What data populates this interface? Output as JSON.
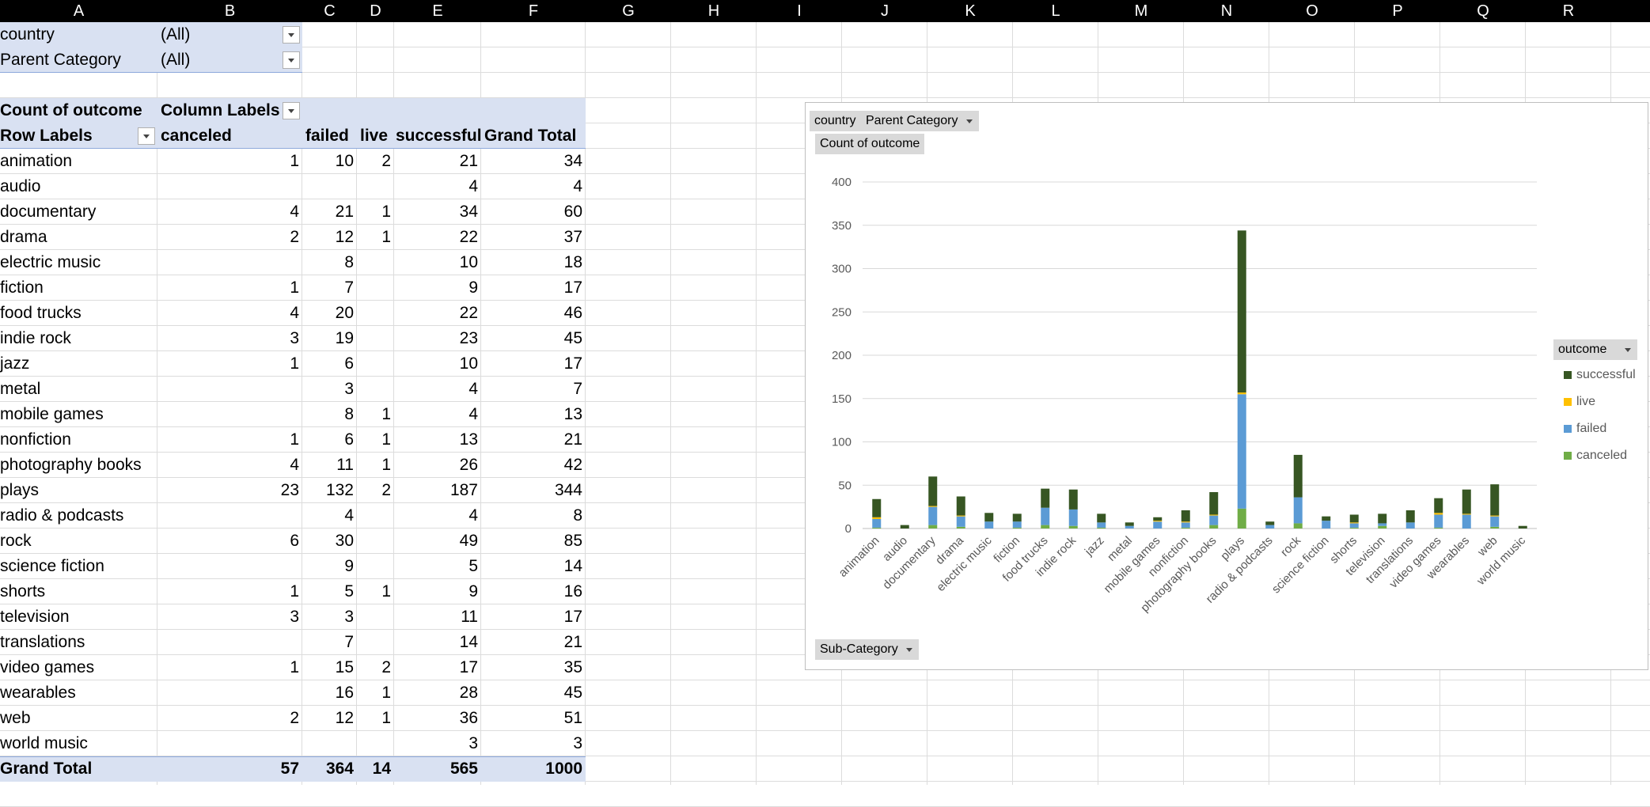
{
  "columns": [
    "A",
    "B",
    "C",
    "D",
    "E",
    "F",
    "G",
    "H",
    "I",
    "J",
    "K",
    "L",
    "M",
    "N",
    "O",
    "P",
    "Q",
    "R"
  ],
  "filters": [
    {
      "label": "country",
      "value": "(All)"
    },
    {
      "label": "Parent Category",
      "value": "(All)"
    }
  ],
  "pivot": {
    "value_label": "Count of outcome",
    "column_labels": "Column Labels",
    "row_labels": "Row Labels",
    "headers": [
      "canceled",
      "failed",
      "live",
      "successful",
      "Grand Total"
    ],
    "rows": [
      {
        "name": "animation",
        "c": "1",
        "f": "10",
        "l": "2",
        "s": "21",
        "t": "34"
      },
      {
        "name": "audio",
        "c": "",
        "f": "",
        "l": "",
        "s": "4",
        "t": "4"
      },
      {
        "name": "documentary",
        "c": "4",
        "f": "21",
        "l": "1",
        "s": "34",
        "t": "60"
      },
      {
        "name": "drama",
        "c": "2",
        "f": "12",
        "l": "1",
        "s": "22",
        "t": "37"
      },
      {
        "name": "electric music",
        "c": "",
        "f": "8",
        "l": "",
        "s": "10",
        "t": "18"
      },
      {
        "name": "fiction",
        "c": "1",
        "f": "7",
        "l": "",
        "s": "9",
        "t": "17"
      },
      {
        "name": "food trucks",
        "c": "4",
        "f": "20",
        "l": "",
        "s": "22",
        "t": "46"
      },
      {
        "name": "indie rock",
        "c": "3",
        "f": "19",
        "l": "",
        "s": "23",
        "t": "45"
      },
      {
        "name": "jazz",
        "c": "1",
        "f": "6",
        "l": "",
        "s": "10",
        "t": "17"
      },
      {
        "name": "metal",
        "c": "",
        "f": "3",
        "l": "",
        "s": "4",
        "t": "7"
      },
      {
        "name": "mobile games",
        "c": "",
        "f": "8",
        "l": "1",
        "s": "4",
        "t": "13"
      },
      {
        "name": "nonfiction",
        "c": "1",
        "f": "6",
        "l": "1",
        "s": "13",
        "t": "21"
      },
      {
        "name": "photography books",
        "c": "4",
        "f": "11",
        "l": "1",
        "s": "26",
        "t": "42"
      },
      {
        "name": "plays",
        "c": "23",
        "f": "132",
        "l": "2",
        "s": "187",
        "t": "344"
      },
      {
        "name": "radio & podcasts",
        "c": "",
        "f": "4",
        "l": "",
        "s": "4",
        "t": "8"
      },
      {
        "name": "rock",
        "c": "6",
        "f": "30",
        "l": "",
        "s": "49",
        "t": "85"
      },
      {
        "name": "science fiction",
        "c": "",
        "f": "9",
        "l": "",
        "s": "5",
        "t": "14"
      },
      {
        "name": "shorts",
        "c": "1",
        "f": "5",
        "l": "1",
        "s": "9",
        "t": "16"
      },
      {
        "name": "television",
        "c": "3",
        "f": "3",
        "l": "",
        "s": "11",
        "t": "17"
      },
      {
        "name": "translations",
        "c": "",
        "f": "7",
        "l": "",
        "s": "14",
        "t": "21"
      },
      {
        "name": "video games",
        "c": "1",
        "f": "15",
        "l": "2",
        "s": "17",
        "t": "35"
      },
      {
        "name": "wearables",
        "c": "",
        "f": "16",
        "l": "1",
        "s": "28",
        "t": "45"
      },
      {
        "name": "web",
        "c": "2",
        "f": "12",
        "l": "1",
        "s": "36",
        "t": "51"
      },
      {
        "name": "world music",
        "c": "",
        "f": "",
        "l": "",
        "s": "3",
        "t": "3"
      }
    ],
    "grand_total": {
      "name": "Grand Total",
      "c": "57",
      "f": "364",
      "l": "14",
      "s": "565",
      "t": "1000"
    }
  },
  "chart_buttons": {
    "country": "country",
    "parent": "Parent Category",
    "value": "Count of outcome",
    "axis": "Sub-Category",
    "legend": "outcome"
  },
  "chart_data": {
    "type": "bar",
    "stacked": true,
    "categories": [
      "animation",
      "audio",
      "documentary",
      "drama",
      "electric music",
      "fiction",
      "food trucks",
      "indie rock",
      "jazz",
      "metal",
      "mobile games",
      "nonfiction",
      "photography books",
      "plays",
      "radio & podcasts",
      "rock",
      "science fiction",
      "shorts",
      "television",
      "translations",
      "video games",
      "wearables",
      "web",
      "world music"
    ],
    "series": [
      {
        "name": "canceled",
        "color": "#70ad47",
        "values": [
          1,
          0,
          4,
          2,
          0,
          1,
          4,
          3,
          1,
          0,
          0,
          1,
          4,
          23,
          0,
          6,
          0,
          1,
          3,
          0,
          1,
          0,
          2,
          0
        ]
      },
      {
        "name": "failed",
        "color": "#5b9bd5",
        "values": [
          10,
          0,
          21,
          12,
          8,
          7,
          20,
          19,
          6,
          3,
          8,
          6,
          11,
          132,
          4,
          30,
          9,
          5,
          3,
          7,
          15,
          16,
          12,
          0
        ]
      },
      {
        "name": "live",
        "color": "#ffc000",
        "values": [
          2,
          0,
          1,
          1,
          0,
          0,
          0,
          0,
          0,
          0,
          1,
          1,
          1,
          2,
          0,
          0,
          0,
          1,
          0,
          0,
          2,
          1,
          1,
          0
        ]
      },
      {
        "name": "successful",
        "color": "#375623",
        "values": [
          21,
          4,
          34,
          22,
          10,
          9,
          22,
          23,
          10,
          4,
          4,
          13,
          26,
          187,
          4,
          49,
          5,
          9,
          11,
          14,
          17,
          28,
          36,
          3
        ]
      }
    ],
    "legend_order": [
      "successful",
      "live",
      "failed",
      "canceled"
    ],
    "ylim": [
      0,
      400
    ],
    "yticks": [
      0,
      50,
      100,
      150,
      200,
      250,
      300,
      350,
      400
    ]
  }
}
